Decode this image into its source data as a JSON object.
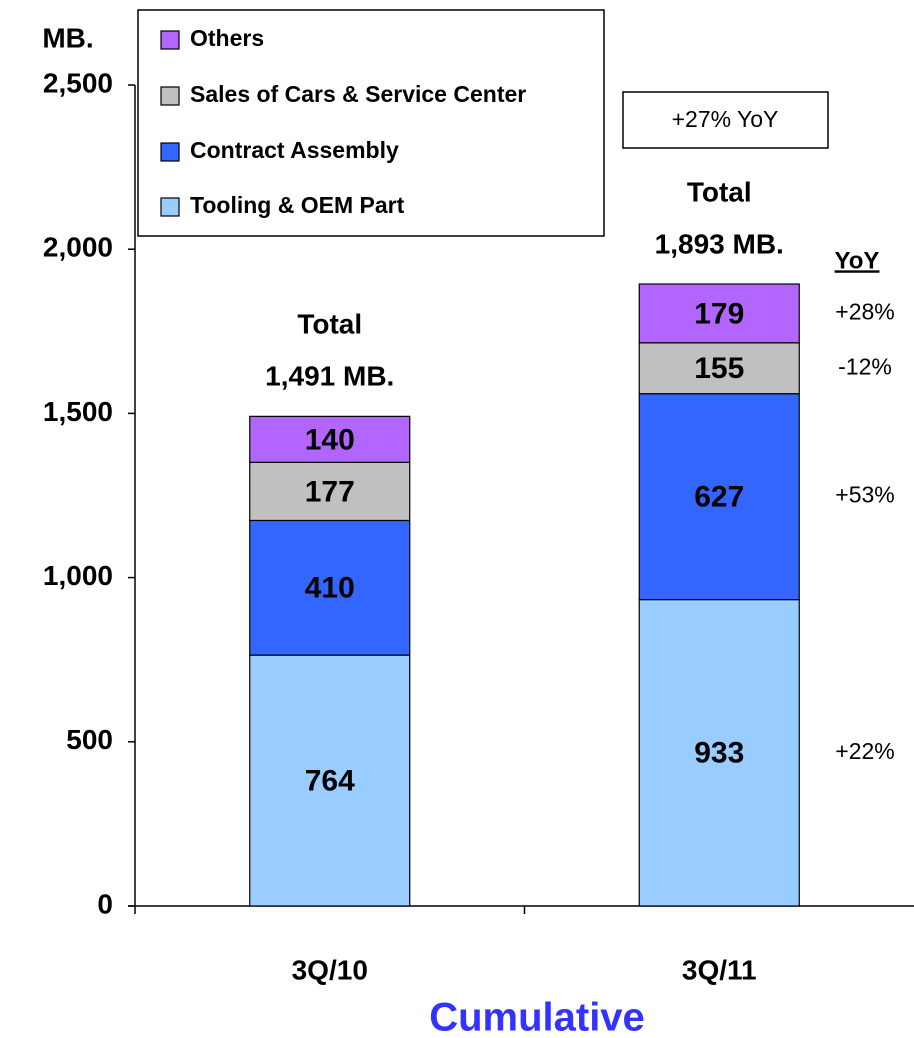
{
  "chart_data": {
    "type": "stacked_bar",
    "y_label": "MB.",
    "x_label": "Cumulative",
    "categories": [
      "3Q/10",
      "3Q/11"
    ],
    "series": [
      {
        "name": "Tooling & OEM Part",
        "color": "#99ccff",
        "values": [
          764,
          933
        ]
      },
      {
        "name": "Contract Assembly",
        "color": "#3366ff",
        "values": [
          410,
          627
        ]
      },
      {
        "name": "Sales of Cars & Service Center",
        "color": "#c0c0c0",
        "values": [
          177,
          155
        ]
      },
      {
        "name": "Others",
        "color": "#b366ff",
        "values": [
          140,
          179
        ]
      }
    ],
    "totals": [
      {
        "title": "Total",
        "label": "1,491 MB."
      },
      {
        "title": "Total",
        "label": "1,893 MB."
      }
    ],
    "yoy": {
      "title": "YoY",
      "labels": [
        "+22%",
        "+53%",
        "-12%",
        "+28%"
      ]
    },
    "annotation": "+27% YoY",
    "ylim": [
      0,
      2500
    ],
    "yticks": [
      0,
      500,
      {
        "value": 1000,
        "label": "1,000"
      },
      {
        "value": 1500,
        "label": "1,500"
      },
      {
        "value": 2000,
        "label": "2,000"
      },
      {
        "value": 2500,
        "label": "2,500"
      }
    ],
    "legend": "top-left"
  }
}
